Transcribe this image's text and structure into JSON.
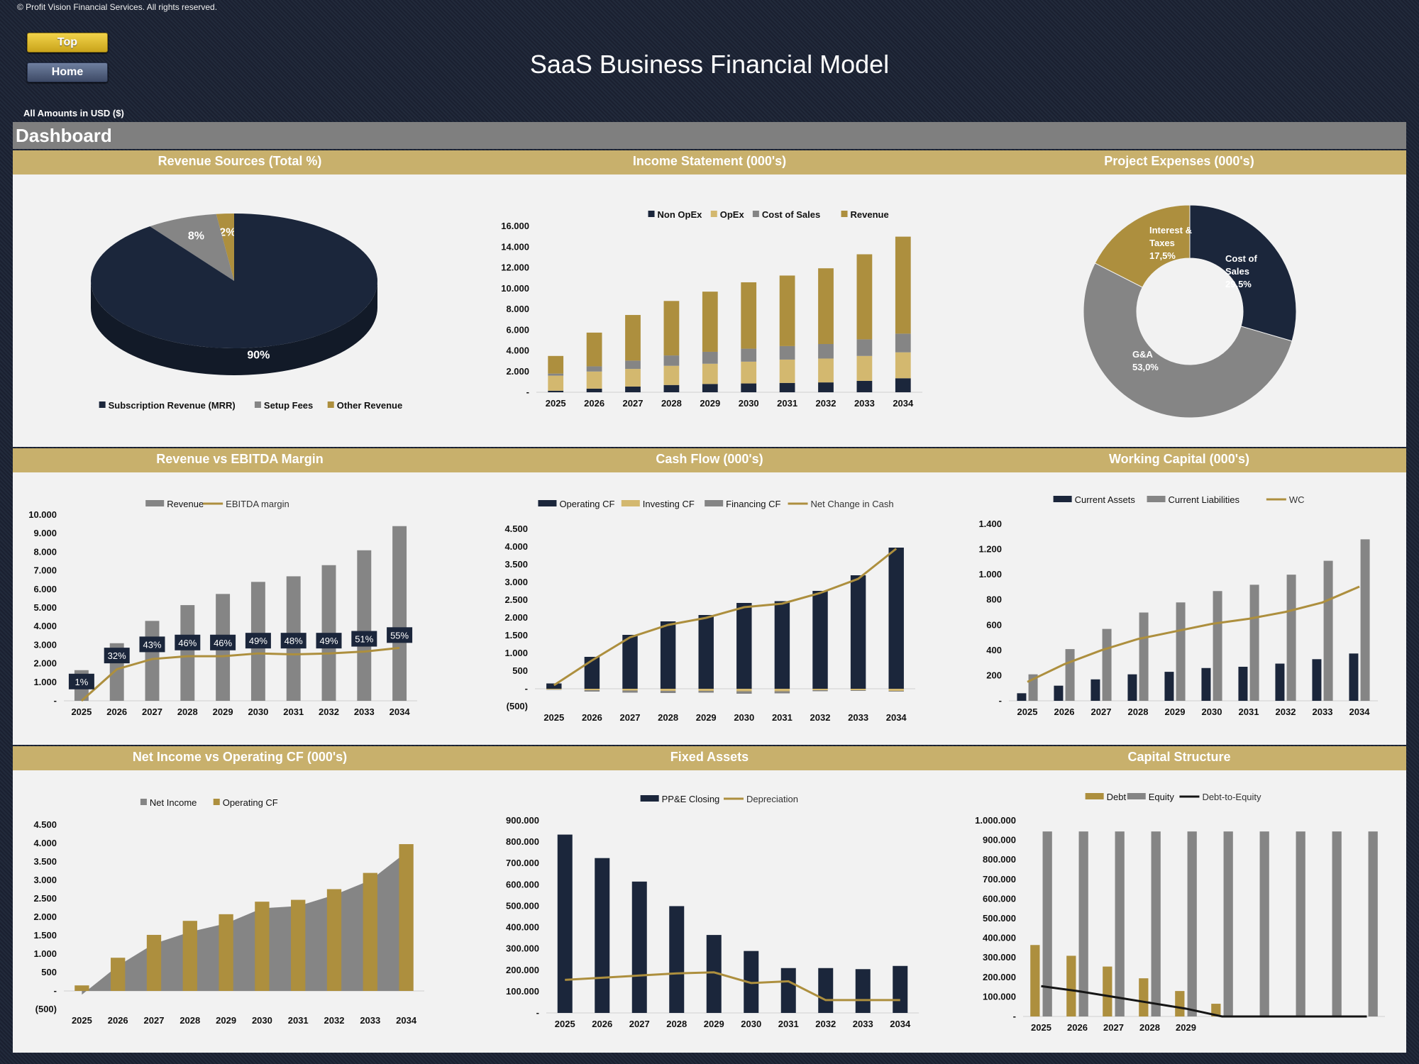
{
  "header": {
    "copyright": "© Profit Vision Financial Services. All rights reserved.",
    "top_button": "Top",
    "home_button": "Home",
    "title": "SaaS Business Financial Model",
    "amounts": "All Amounts in  USD ($)",
    "section": "Dashboard"
  },
  "colors": {
    "navy": "#1b263b",
    "gold": "#ad8f3e",
    "gray": "#858585",
    "tan": "#d3b86f",
    "black": "#151515"
  },
  "chart_data": [
    {
      "id": "revenue-sources",
      "title": "Revenue Sources (Total %)",
      "type": "pie",
      "labels": [
        "Subscription Revenue (MRR)",
        "Setup Fees",
        "Other Revenue"
      ],
      "values": [
        90,
        8,
        2
      ],
      "value_labels": [
        "90%",
        "8%",
        "2%"
      ]
    },
    {
      "id": "income-statement",
      "title": "Income Statement (000's)",
      "type": "bar",
      "stacked": true,
      "categories": [
        "2025",
        "2026",
        "2027",
        "2028",
        "2029",
        "2030",
        "2031",
        "2032",
        "2033",
        "2034"
      ],
      "ylim": [
        0,
        16000
      ],
      "yticks": [
        "-",
        "2.000",
        "4.000",
        "6.000",
        "8.000",
        "10.000",
        "12.000",
        "14.000",
        "16.000"
      ],
      "series": [
        {
          "name": "Non OpEx",
          "values": [
            150,
            350,
            550,
            700,
            800,
            850,
            900,
            950,
            1100,
            1350
          ]
        },
        {
          "name": "OpEx",
          "values": [
            1450,
            1650,
            1700,
            1850,
            1950,
            2100,
            2250,
            2300,
            2400,
            2500
          ]
        },
        {
          "name": "Cost of Sales",
          "values": [
            200,
            500,
            800,
            1000,
            1150,
            1250,
            1300,
            1400,
            1600,
            1800
          ]
        },
        {
          "name": "Revenue",
          "values": [
            1700,
            3250,
            4400,
            5250,
            5800,
            6400,
            6800,
            7300,
            8200,
            9350
          ]
        }
      ]
    },
    {
      "id": "project-expenses",
      "title": "Project Expenses (000's)",
      "type": "pie",
      "donut": true,
      "labels": [
        "Cost of Sales",
        "G&A",
        "Interest & Taxes"
      ],
      "values": [
        29.5,
        53.0,
        17.5
      ],
      "value_labels": [
        "Cost of Sales 29,5%",
        "G&A 53,0%",
        "Interest & Taxes 17,5%"
      ]
    },
    {
      "id": "revenue-vs-ebitda",
      "title": "Revenue vs EBITDA Margin",
      "type": "bar",
      "categories": [
        "2025",
        "2026",
        "2027",
        "2028",
        "2029",
        "2030",
        "2031",
        "2032",
        "2033",
        "2034"
      ],
      "ylim": [
        0,
        10000
      ],
      "yticks": [
        "-",
        "1.000",
        "2.000",
        "3.000",
        "4.000",
        "5.000",
        "6.000",
        "7.000",
        "8.000",
        "9.000",
        "10.000"
      ],
      "series": [
        {
          "name": "Revenue",
          "values": [
            1650,
            3100,
            4300,
            5150,
            5750,
            6400,
            6700,
            7300,
            8100,
            9400
          ]
        },
        {
          "name": "EBITDA margin",
          "values": [
            1,
            32,
            43,
            46,
            46,
            49,
            48,
            49,
            51,
            55
          ],
          "labels": [
            "1%",
            "32%",
            "43%",
            "46%",
            "46%",
            "49%",
            "48%",
            "49%",
            "51%",
            "55%"
          ]
        }
      ]
    },
    {
      "id": "cash-flow",
      "title": "Cash Flow (000's)",
      "type": "bar",
      "categories": [
        "2025",
        "2026",
        "2027",
        "2028",
        "2029",
        "2030",
        "2031",
        "2032",
        "2033",
        "2034"
      ],
      "ylim": [
        -500,
        4500
      ],
      "yticks": [
        "(500)",
        "-",
        "500",
        "1.000",
        "1.500",
        "2.000",
        "2.500",
        "3.000",
        "3.500",
        "4.000",
        "4.500"
      ],
      "series": [
        {
          "name": "Operating CF",
          "values": [
            150,
            900,
            1520,
            1900,
            2080,
            2420,
            2470,
            2760,
            3200,
            3980
          ]
        },
        {
          "name": "Investing CF",
          "values": [
            -20,
            -40,
            -50,
            -60,
            -60,
            -70,
            -70,
            -40,
            -40,
            -60
          ]
        },
        {
          "name": "Financing CF",
          "values": [
            -10,
            -40,
            -60,
            -60,
            -50,
            -70,
            -60,
            -30,
            -20,
            -20
          ]
        },
        {
          "name": "Net Change in Cash",
          "values": [
            100,
            800,
            1450,
            1800,
            2000,
            2300,
            2400,
            2700,
            3100,
            3950
          ]
        }
      ]
    },
    {
      "id": "working-capital",
      "title": "Working Capital (000's)",
      "type": "bar",
      "categories": [
        "2025",
        "2026",
        "2027",
        "2028",
        "2029",
        "2030",
        "2031",
        "2032",
        "2033",
        "2034"
      ],
      "ylim": [
        0,
        1400
      ],
      "yticks": [
        "-",
        "200",
        "400",
        "600",
        "800",
        "1.000",
        "1.200",
        "1.400"
      ],
      "series": [
        {
          "name": "Current Assets",
          "values": [
            60,
            120,
            170,
            210,
            230,
            260,
            270,
            295,
            330,
            375
          ]
        },
        {
          "name": "Current Liabilities",
          "values": [
            210,
            410,
            570,
            700,
            780,
            870,
            920,
            1000,
            1110,
            1280
          ]
        },
        {
          "name": "WC",
          "values": [
            150,
            290,
            400,
            490,
            550,
            610,
            650,
            705,
            780,
            905
          ]
        }
      ]
    },
    {
      "id": "net-income-vs-ocf",
      "title": "Net Income vs Operating CF (000's)",
      "type": "area",
      "categories": [
        "2025",
        "2026",
        "2027",
        "2028",
        "2029",
        "2030",
        "2031",
        "2032",
        "2033",
        "2034"
      ],
      "ylim": [
        -500,
        4500
      ],
      "yticks": [
        "(500)",
        "-",
        "500",
        "1.000",
        "1.500",
        "2.000",
        "2.500",
        "3.000",
        "3.500",
        "4.000",
        "4.500"
      ],
      "series": [
        {
          "name": "Net Income",
          "values": [
            -100,
            680,
            1280,
            1600,
            1830,
            2240,
            2300,
            2600,
            3000,
            3760
          ]
        },
        {
          "name": "Operating CF",
          "values": [
            150,
            900,
            1520,
            1900,
            2080,
            2420,
            2470,
            2760,
            3200,
            3980
          ]
        }
      ]
    },
    {
      "id": "fixed-assets",
      "title": "Fixed Assets",
      "type": "bar",
      "categories": [
        "2025",
        "2026",
        "2027",
        "2028",
        "2029",
        "2030",
        "2031",
        "2032",
        "2033",
        "2034"
      ],
      "ylim": [
        0,
        900000
      ],
      "yticks": [
        "-",
        "100.000",
        "200.000",
        "300.000",
        "400.000",
        "500.000",
        "600.000",
        "700.000",
        "800.000",
        "900.000"
      ],
      "series": [
        {
          "name": "PP&E Closing",
          "values": [
            835000,
            725000,
            615000,
            500000,
            365000,
            290000,
            210000,
            210000,
            205000,
            220000
          ]
        },
        {
          "name": "Depreciation",
          "values": [
            155000,
            165000,
            175000,
            185000,
            190000,
            140000,
            148000,
            60000,
            60000,
            60000
          ]
        }
      ]
    },
    {
      "id": "capital-structure",
      "title": "Capital Structure",
      "type": "bar",
      "categories": [
        "2025",
        "2026",
        "2027",
        "2028",
        "2029",
        "",
        "",
        "",
        "",
        ""
      ],
      "ylim": [
        0,
        1000000
      ],
      "yticks": [
        "-",
        "100.000",
        "200.000",
        "300.000",
        "400.000",
        "500.000",
        "600.000",
        "700.000",
        "800.000",
        "900.000",
        "1.000.000"
      ],
      "series": [
        {
          "name": "Debt",
          "values": [
            365000,
            310000,
            255000,
            195000,
            130000,
            65000,
            0,
            0,
            0,
            0
          ]
        },
        {
          "name": "Equity",
          "values": [
            945000,
            945000,
            945000,
            945000,
            945000,
            945000,
            945000,
            945000,
            945000,
            945000
          ]
        },
        {
          "name": "Debt-to-Equity",
          "values": [
            155000,
            130000,
            100000,
            70000,
            40000,
            0,
            0,
            0,
            0,
            0
          ]
        }
      ]
    }
  ]
}
